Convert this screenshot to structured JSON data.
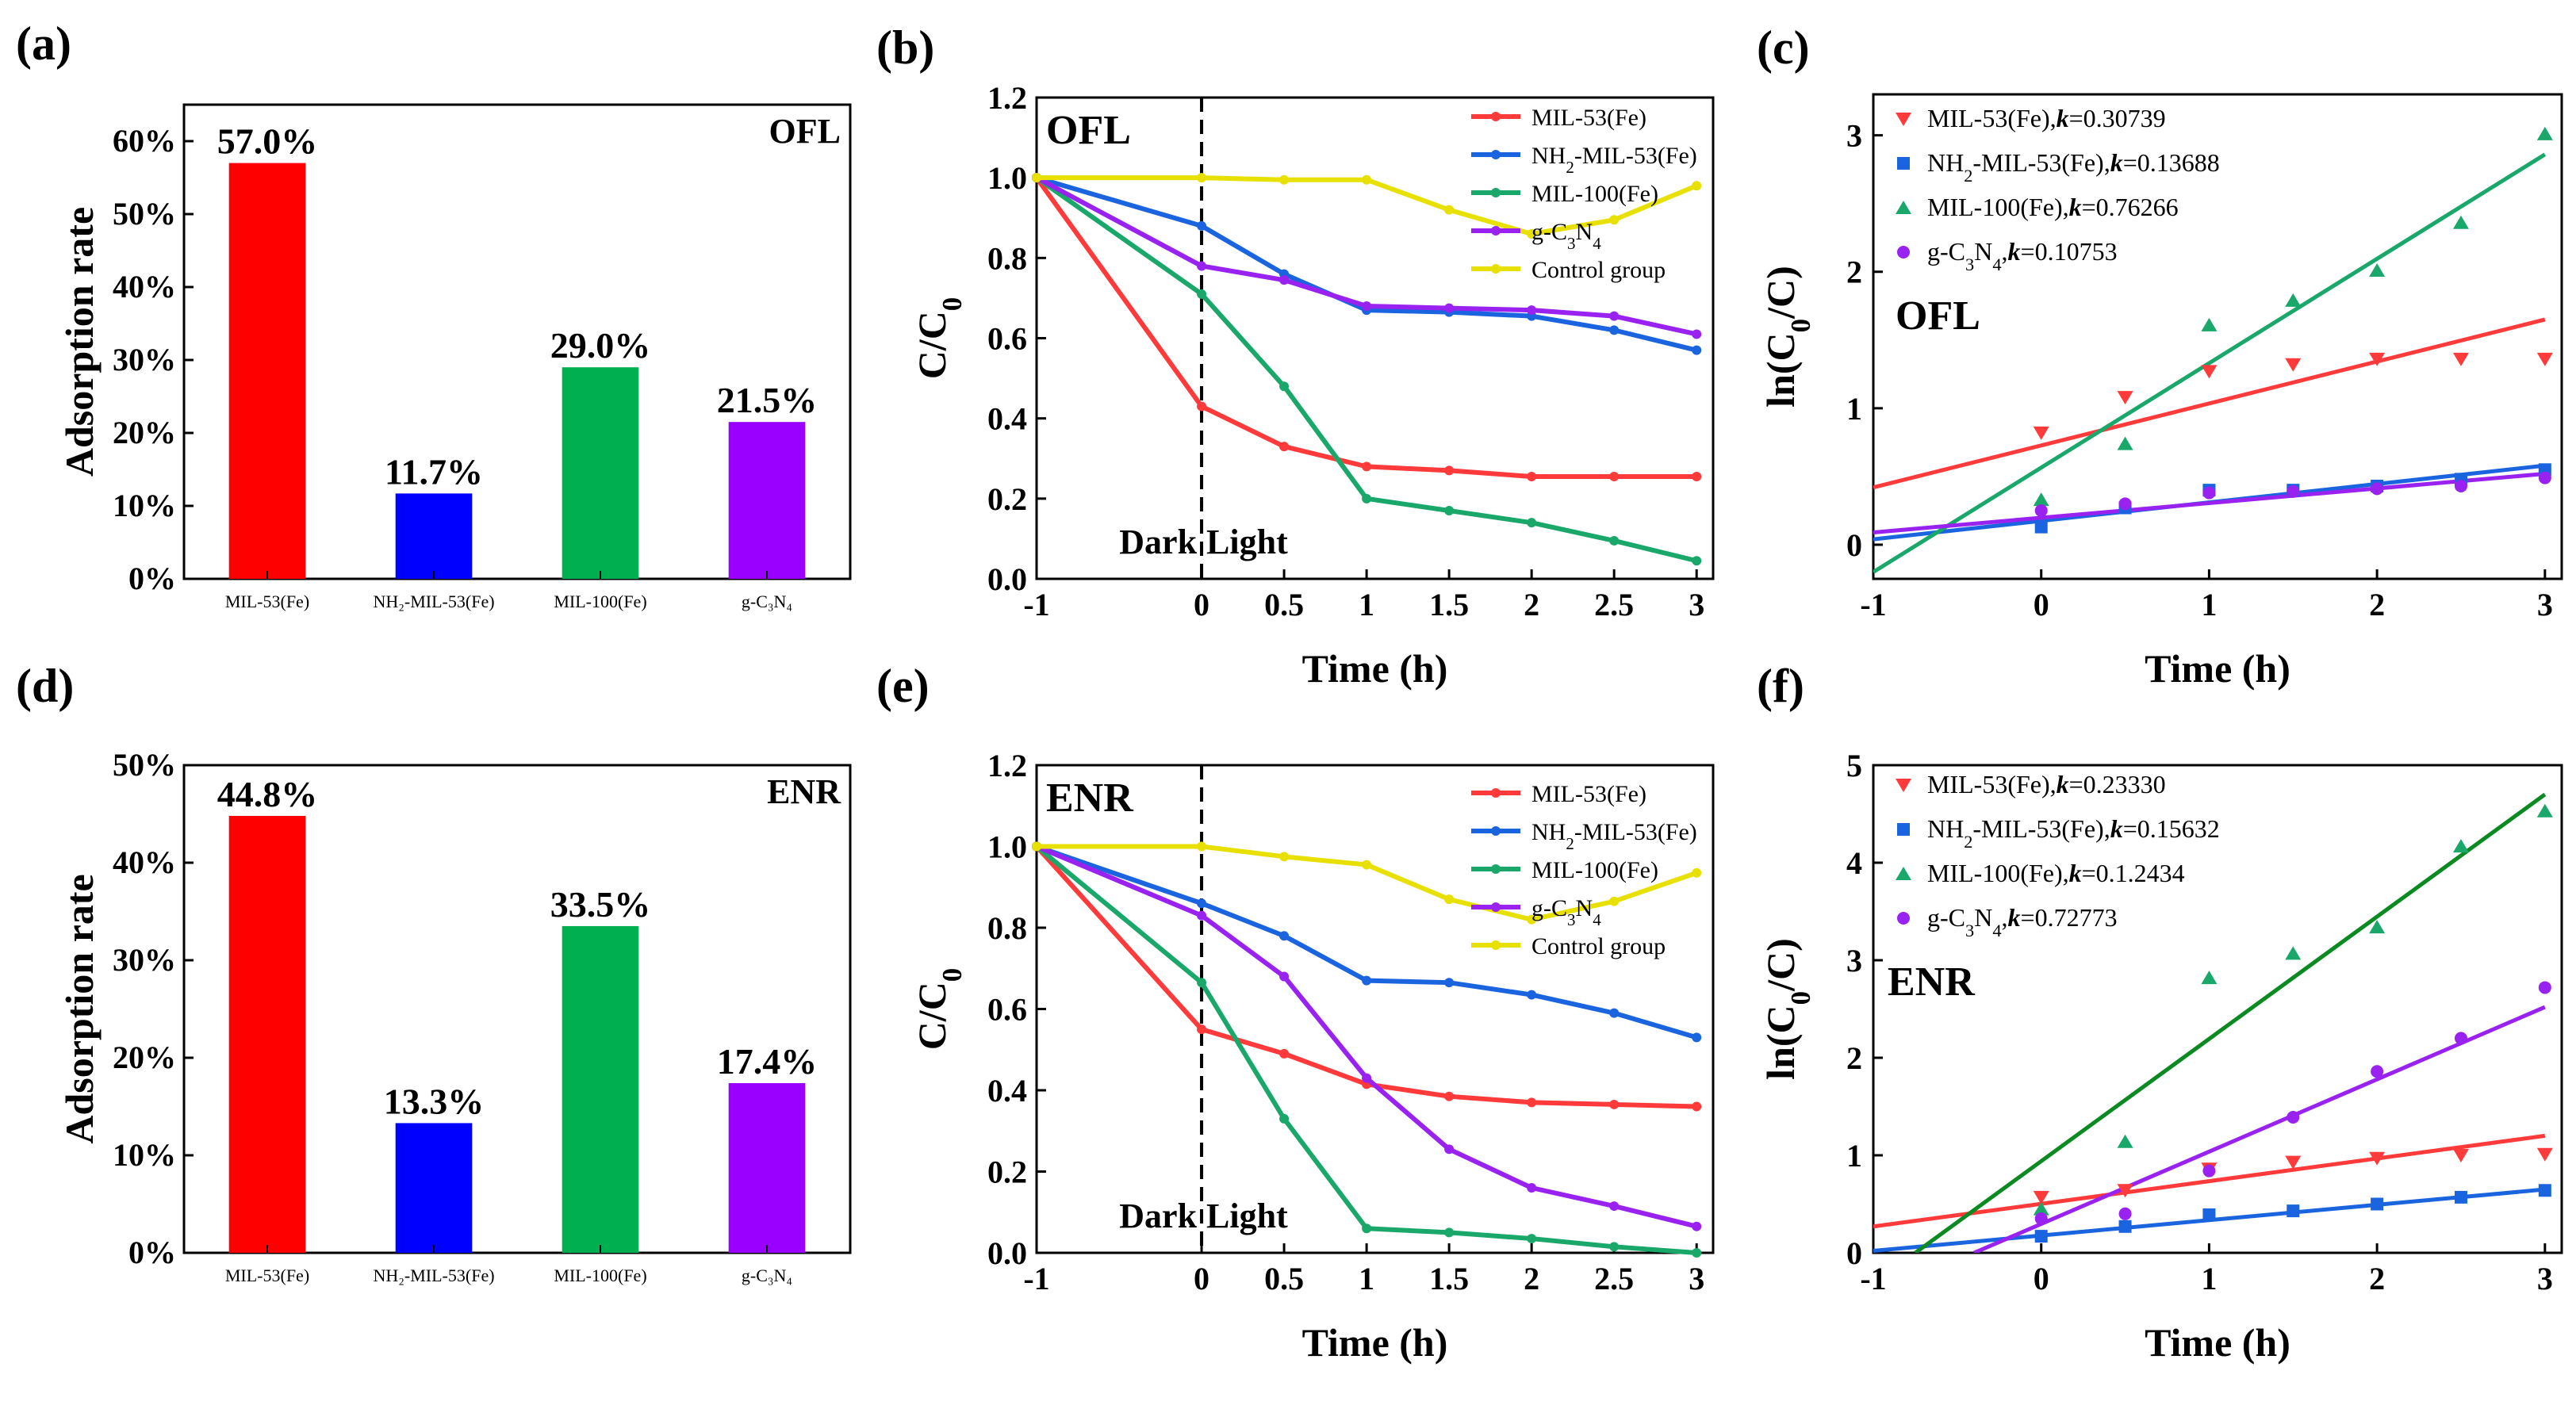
{
  "figure": {
    "colors": {
      "red": "#ff3a3a",
      "blue": "#1a64e0",
      "green": "#1aa86a",
      "purple": "#9a22f0",
      "yellow": "#e8e000",
      "bar_red": "#ff0000",
      "bar_blue": "#0000ff",
      "bar_green": "#00b050",
      "bar_purple": "#9900ff",
      "fit_green_f": "#0a8a20"
    }
  },
  "chart_data": [
    {
      "panel": "(a)",
      "type": "bar",
      "annotation": "OFL",
      "ylabel": "Adsorption rate",
      "ylim": [
        0,
        65
      ],
      "yticks": [
        "0%",
        "10%",
        "20%",
        "30%",
        "40%",
        "50%",
        "60%"
      ],
      "categories": [
        "MIL-53(Fe)",
        "NH₂-MIL-53(Fe)",
        "MIL-100(Fe)",
        "g-C₃N₄"
      ],
      "values": [
        57.0,
        11.7,
        29.0,
        21.5
      ],
      "value_labels": [
        "57.0%",
        "11.7%",
        "29.0%",
        "21.5%"
      ]
    },
    {
      "panel": "(b)",
      "type": "line",
      "annotation": "OFL",
      "xlabel": "Time (h)",
      "ylabel": "C/C",
      "ylabel_sub": "0",
      "xlim": [
        -1,
        3.1
      ],
      "ylim": [
        0,
        1.2
      ],
      "xticks": [
        "-1",
        "0",
        "0.5",
        "1",
        "1.5",
        "2",
        "2.5",
        "3"
      ],
      "yticks": [
        "0.0",
        "0.2",
        "0.4",
        "0.6",
        "0.8",
        "1.0",
        "1.2"
      ],
      "dark_text": "Dark",
      "light_text": "Light",
      "x": [
        -1,
        0,
        0.5,
        1,
        1.5,
        2,
        2.5,
        3
      ],
      "series": [
        {
          "name": "MIL-53(Fe)",
          "values": [
            1.0,
            0.43,
            0.33,
            0.28,
            0.27,
            0.255,
            0.255,
            0.255
          ]
        },
        {
          "name": "NH2-MIL-53(Fe)",
          "values": [
            1.0,
            0.88,
            0.76,
            0.67,
            0.665,
            0.655,
            0.62,
            0.57
          ]
        },
        {
          "name": "MIL-100(Fe)",
          "values": [
            1.0,
            0.71,
            0.48,
            0.2,
            0.17,
            0.14,
            0.095,
            0.045
          ]
        },
        {
          "name": "g-C3N4",
          "values": [
            1.0,
            0.78,
            0.745,
            0.68,
            0.675,
            0.67,
            0.655,
            0.61
          ]
        },
        {
          "name": "Control group",
          "values": [
            1.0,
            1.0,
            0.995,
            0.995,
            0.92,
            0.86,
            0.895,
            0.98
          ]
        }
      ]
    },
    {
      "panel": "(c)",
      "type": "scatter",
      "annotation": "OFL",
      "xlabel": "Time (h)",
      "ylabel": "ln(C",
      "ylabel_sub": "0",
      "ylabel_end": "/C)",
      "xlim": [
        -1,
        3.1
      ],
      "ylim": [
        -0.25,
        3.3
      ],
      "xticks": [
        "-1",
        "0",
        "1",
        "2",
        "3"
      ],
      "yticks": [
        "0",
        "1",
        "2",
        "3"
      ],
      "x": [
        0,
        0.5,
        1,
        1.5,
        2,
        2.5,
        3
      ],
      "series": [
        {
          "name_main": "MIL-53(Fe),",
          "name_k": "k",
          "name_val": "=0.30739",
          "points": [
            0.82,
            1.08,
            1.27,
            1.32,
            1.36,
            1.36,
            1.36
          ],
          "fit": [
            [
              -1,
              0.42
            ],
            [
              3,
              1.65
            ]
          ]
        },
        {
          "name_main": "NH2-MIL-53(Fe),",
          "name_k": "k",
          "name_val": "=0.13688",
          "points": [
            0.13,
            0.27,
            0.4,
            0.4,
            0.43,
            0.48,
            0.55
          ],
          "fit": [
            [
              -1,
              0.04
            ],
            [
              3,
              0.58
            ]
          ]
        },
        {
          "name_main": "MIL-100(Fe),",
          "name_k": "k",
          "name_val": "=0.76266",
          "points": [
            0.33,
            0.74,
            1.61,
            1.79,
            2.01,
            2.36,
            3.01
          ],
          "fit": [
            [
              -1,
              -0.2
            ],
            [
              3,
              2.86
            ]
          ]
        },
        {
          "name_main": "g-C3N4,",
          "name_k": "k",
          "name_val": "=0.10753",
          "points": [
            0.25,
            0.3,
            0.38,
            0.39,
            0.41,
            0.43,
            0.49
          ],
          "fit": [
            [
              -1,
              0.09
            ],
            [
              3,
              0.52
            ]
          ]
        }
      ]
    },
    {
      "panel": "(d)",
      "type": "bar",
      "annotation": "ENR",
      "ylabel": "Adsorption rate",
      "ylim": [
        0,
        50
      ],
      "yticks": [
        "0%",
        "10%",
        "20%",
        "30%",
        "40%",
        "50%"
      ],
      "categories": [
        "MIL-53(Fe)",
        "NH₂-MIL-53(Fe)",
        "MIL-100(Fe)",
        "g-C₃N₄"
      ],
      "values": [
        44.8,
        13.3,
        33.5,
        17.4
      ],
      "value_labels": [
        "44.8%",
        "13.3%",
        "33.5%",
        "17.4%"
      ]
    },
    {
      "panel": "(e)",
      "type": "line",
      "annotation": "ENR",
      "xlabel": "Time (h)",
      "ylabel": "C/C",
      "ylabel_sub": "0",
      "xlim": [
        -1,
        3.1
      ],
      "ylim": [
        0,
        1.2
      ],
      "xticks": [
        "-1",
        "0",
        "0.5",
        "1",
        "1.5",
        "2",
        "2.5",
        "3"
      ],
      "yticks": [
        "0.0",
        "0.2",
        "0.4",
        "0.6",
        "0.8",
        "1.0",
        "1.2"
      ],
      "dark_text": "Dark",
      "light_text": "Light",
      "x": [
        -1,
        0,
        0.5,
        1,
        1.5,
        2,
        2.5,
        3
      ],
      "series": [
        {
          "name": "MIL-53(Fe)",
          "values": [
            1.0,
            0.55,
            0.49,
            0.415,
            0.385,
            0.37,
            0.365,
            0.36
          ]
        },
        {
          "name": "NH2-MIL-53(Fe)",
          "values": [
            1.0,
            0.86,
            0.78,
            0.67,
            0.665,
            0.635,
            0.59,
            0.53
          ]
        },
        {
          "name": "MIL-100(Fe)",
          "values": [
            1.0,
            0.665,
            0.33,
            0.06,
            0.05,
            0.035,
            0.015,
            0.0
          ]
        },
        {
          "name": "g-C3N4",
          "values": [
            1.0,
            0.83,
            0.68,
            0.43,
            0.255,
            0.16,
            0.115,
            0.065
          ]
        },
        {
          "name": "Control group",
          "values": [
            1.0,
            1.0,
            0.975,
            0.955,
            0.87,
            0.82,
            0.865,
            0.935
          ]
        }
      ]
    },
    {
      "panel": "(f)",
      "type": "scatter",
      "annotation": "ENR",
      "xlabel": "Time (h)",
      "ylabel": "ln(C",
      "ylabel_sub": "0",
      "ylabel_end": "/C)",
      "xlim": [
        -1,
        3.1
      ],
      "ylim": [
        0,
        5
      ],
      "xticks": [
        "-1",
        "0",
        "1",
        "2",
        "3"
      ],
      "yticks": [
        "0",
        "1",
        "2",
        "3",
        "4",
        "5"
      ],
      "x": [
        0,
        0.5,
        1,
        1.5,
        2,
        2.5,
        3
      ],
      "series": [
        {
          "name_main": "MIL-53(Fe),",
          "name_k": "k",
          "name_val": "=0.23330",
          "points": [
            0.57,
            0.64,
            0.86,
            0.93,
            0.97,
            1.0,
            1.01
          ],
          "fit": [
            [
              -1,
              0.27
            ],
            [
              3,
              1.2
            ]
          ]
        },
        {
          "name_main": "NH2-MIL-53(Fe),",
          "name_k": "k",
          "name_val": "=0.15632",
          "points": [
            0.17,
            0.27,
            0.39,
            0.43,
            0.5,
            0.57,
            0.64
          ],
          "fit": [
            [
              -1,
              0.02
            ],
            [
              3,
              0.65
            ]
          ]
        },
        {
          "name_main": "MIL-100(Fe),",
          "name_k": "k",
          "name_val": "=0.1.2434",
          "points": [
            0.45,
            1.14,
            2.82,
            3.07,
            3.34,
            4.17,
            4.53
          ],
          "fit": [
            [
              -0.75,
              0.0
            ],
            [
              3,
              4.7
            ]
          ]
        },
        {
          "name_main": "g-C3N4,",
          "name_k": "k",
          "name_val": "=0.72773",
          "points": [
            0.35,
            0.4,
            0.84,
            1.39,
            1.86,
            2.2,
            2.72
          ],
          "fit": [
            [
              -0.4,
              0.0
            ],
            [
              3,
              2.52
            ]
          ]
        }
      ]
    }
  ]
}
